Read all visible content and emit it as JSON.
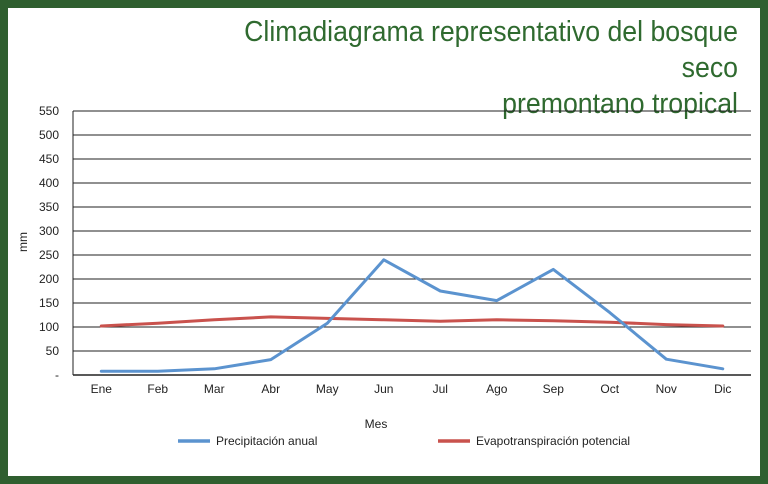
{
  "title_line1": "Climadiagrama representativo del bosque seco",
  "title_line2": "premontano tropical",
  "colors": {
    "frame": "#2f5f2f",
    "title": "#2f6a2f",
    "precip": "#5b93cf",
    "evapo": "#c9524d",
    "grid": "#222222"
  },
  "chart_data": {
    "type": "line",
    "xlabel": "Mes",
    "ylabel": "mm",
    "categories": [
      "Ene",
      "Feb",
      "Mar",
      "Abr",
      "May",
      "Jun",
      "Jul",
      "Ago",
      "Sep",
      "Oct",
      "Nov",
      "Dic"
    ],
    "ytick_labels": [
      "-",
      "50",
      "100",
      "150",
      "200",
      "250",
      "300",
      "350",
      "400",
      "450",
      "500",
      "550"
    ],
    "ylim": [
      0,
      550
    ],
    "grid": true,
    "legend_position": "bottom",
    "series": [
      {
        "name": "Precipitación anual",
        "values": [
          8,
          8,
          13,
          32,
          108,
          240,
          175,
          155,
          220,
          130,
          33,
          13
        ]
      },
      {
        "name": "Evapotranspiración potencial",
        "values": [
          102,
          108,
          115,
          121,
          118,
          115,
          112,
          115,
          113,
          110,
          105,
          102
        ]
      }
    ]
  }
}
